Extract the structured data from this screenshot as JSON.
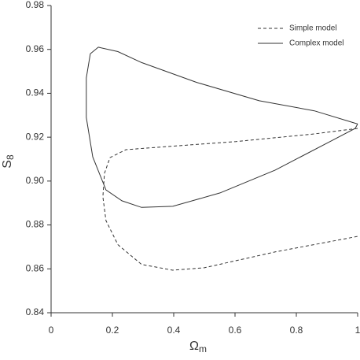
{
  "chart_data": {
    "type": "line",
    "xlabel": "Ω",
    "xlabel_sub": "m",
    "ylabel": "S",
    "ylabel_sub": "8",
    "xlim": [
      0,
      1
    ],
    "xticks": [
      0,
      0.2,
      0.4,
      0.6,
      0.8,
      1
    ],
    "ylim": [
      0.84,
      0.98
    ],
    "yticks": [
      0.84,
      0.86,
      0.88,
      {
        "value": 0.9,
        "label": "0.90"
      },
      0.92,
      0.94,
      0.96,
      0.98
    ],
    "legend": "upper right",
    "series": [
      {
        "name": "Simple model",
        "color": "#333333",
        "dash": true,
        "x": [
          1,
          0.859,
          0.603,
          0.346,
          0.244,
          0.192,
          0.174,
          0.169,
          0.179,
          0.218,
          0.295,
          0.397,
          0.5,
          0.731,
          1
        ],
        "values": [
          0.924,
          0.9215,
          0.918,
          0.9154,
          0.9143,
          0.9107,
          0.9035,
          0.8928,
          0.882,
          0.871,
          0.862,
          0.8594,
          0.8605,
          0.8677,
          0.8748
        ]
      },
      {
        "name": "Complex model",
        "color": "#333333",
        "dash": false,
        "x": [
          1,
          0.859,
          0.679,
          0.474,
          0.295,
          0.218,
          0.154,
          0.128,
          0.115,
          0.115,
          0.136,
          0.179,
          0.231,
          0.295,
          0.397,
          0.551,
          0.731,
          0.91,
          0.992,
          1
        ],
        "values": [
          0.926,
          0.932,
          0.9366,
          0.945,
          0.954,
          0.959,
          0.961,
          0.958,
          0.947,
          0.929,
          0.911,
          0.896,
          0.891,
          0.888,
          0.8885,
          0.8946,
          0.905,
          0.918,
          0.924,
          0.926
        ]
      }
    ]
  }
}
